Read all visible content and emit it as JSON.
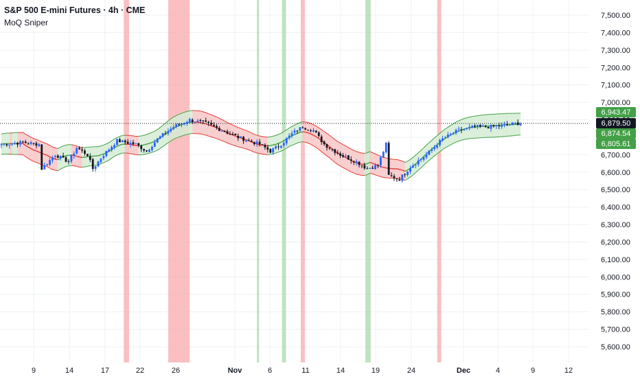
{
  "header": {
    "title": "S&P 500 E-mini Futures · 4h · CME",
    "indicator": "MoQ Sniper"
  },
  "colors": {
    "up_candle": "#2962ff",
    "down_candle": "#131722",
    "band_red_fill": "#f7c6c6",
    "band_green_fill": "#d3ecd3",
    "band_edge_red": "#e53935",
    "band_edge_green": "#43a047",
    "shade_red": "#f8a5a7",
    "shade_green": "#a5d6a7",
    "tag_green": "#43a047",
    "tag_dark": "#131722",
    "grid": "#eef0f3"
  },
  "chart_data": {
    "type": "candlestick",
    "symbol": "S&P 500 E-mini Futures",
    "interval": "4h",
    "exchange": "CME",
    "ylim": [
      5550,
      7550
    ],
    "y_ticks": [
      "7,500.00",
      "7,400.00",
      "7,300.00",
      "7,200.00",
      "7,100.00",
      "7,000.00",
      "6,900.00",
      "6,800.00",
      "6,700.00",
      "6,600.00",
      "6,500.00",
      "6,400.00",
      "6,300.00",
      "6,200.00",
      "6,100.00",
      "6,000.00",
      "5,900.00",
      "5,800.00",
      "5,700.00",
      "5,600.00"
    ],
    "x_ticks": [
      {
        "label": "9",
        "bold": false
      },
      {
        "label": "14",
        "bold": false
      },
      {
        "label": "17",
        "bold": false
      },
      {
        "label": "22",
        "bold": false
      },
      {
        "label": "26",
        "bold": false
      },
      {
        "label": "Nov",
        "bold": true
      },
      {
        "label": "6",
        "bold": false
      },
      {
        "label": "11",
        "bold": false
      },
      {
        "label": "14",
        "bold": false
      },
      {
        "label": "19",
        "bold": false
      },
      {
        "label": "24",
        "bold": false
      },
      {
        "label": "Dec",
        "bold": true
      },
      {
        "label": "4",
        "bold": false
      },
      {
        "label": "9",
        "bold": false
      },
      {
        "label": "12",
        "bold": false
      }
    ],
    "approx_close_path": [
      [
        0,
        6760
      ],
      [
        8,
        6770
      ],
      [
        14,
        6760
      ],
      [
        15,
        6620
      ],
      [
        20,
        6700
      ],
      [
        25,
        6660
      ],
      [
        28,
        6740
      ],
      [
        32,
        6700
      ],
      [
        34,
        6620
      ],
      [
        38,
        6700
      ],
      [
        43,
        6780
      ],
      [
        50,
        6760
      ],
      [
        54,
        6720
      ],
      [
        58,
        6790
      ],
      [
        64,
        6860
      ],
      [
        70,
        6900
      ],
      [
        76,
        6880
      ],
      [
        82,
        6840
      ],
      [
        88,
        6800
      ],
      [
        92,
        6780
      ],
      [
        96,
        6760
      ],
      [
        100,
        6720
      ],
      [
        104,
        6760
      ],
      [
        108,
        6820
      ],
      [
        112,
        6860
      ],
      [
        116,
        6840
      ],
      [
        120,
        6760
      ],
      [
        126,
        6700
      ],
      [
        132,
        6660
      ],
      [
        136,
        6620
      ],
      [
        140,
        6640
      ],
      [
        143,
        6760
      ],
      [
        144,
        6580
      ],
      [
        148,
        6560
      ],
      [
        152,
        6630
      ],
      [
        158,
        6700
      ],
      [
        164,
        6790
      ],
      [
        170,
        6840
      ],
      [
        176,
        6860
      ],
      [
        182,
        6860
      ],
      [
        188,
        6870
      ],
      [
        192,
        6879.5
      ]
    ],
    "vertical_bands": [
      {
        "color": "red",
        "from": 45.5,
        "to": 47.5
      },
      {
        "color": "red",
        "from": 62,
        "to": 70
      },
      {
        "color": "green",
        "from": 95,
        "to": 95.8
      },
      {
        "color": "green",
        "from": 104.3,
        "to": 105.8
      },
      {
        "color": "red",
        "from": 111.3,
        "to": 112.8
      },
      {
        "color": "green",
        "from": 135.3,
        "to": 137.3
      },
      {
        "color": "red",
        "from": 162,
        "to": 163.5
      }
    ],
    "price_tags": [
      {
        "label": "6,943.47",
        "value": 6943.47,
        "kind": "green"
      },
      {
        "label": "6,879.50",
        "value": 6879.5,
        "kind": "dark"
      },
      {
        "label": "6,874.54",
        "value": 6874.54,
        "kind": "green"
      },
      {
        "label": "6,805.61",
        "value": 6805.61,
        "kind": "green"
      }
    ],
    "last_price": 6879.5,
    "grid": true
  }
}
